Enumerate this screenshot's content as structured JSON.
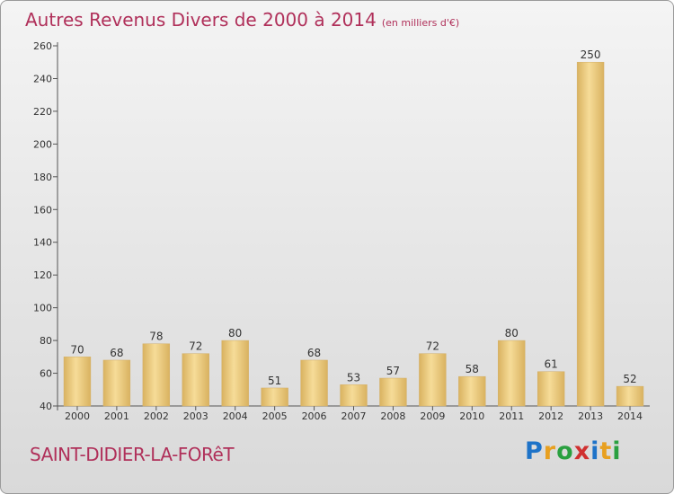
{
  "title": "Autres Revenus Divers de 2000 à 2014",
  "subtitle": "(en milliers d'€)",
  "commune": "SAINT-DIDIER-LA-FORêT",
  "logo": {
    "letters": [
      "P",
      "r",
      "o",
      "x",
      "i",
      "t",
      "i"
    ],
    "colors": [
      "#1e73c8",
      "#e8a020",
      "#2aa040",
      "#d03030",
      "#1e73c8",
      "#e8a020",
      "#2aa040"
    ]
  },
  "colors": {
    "bar_light": "#f6dc98",
    "bar_dark": "#d9b260",
    "axis": "#555555",
    "title": "#b0305a"
  },
  "chart_data": {
    "type": "bar",
    "categories": [
      "2000",
      "2001",
      "2002",
      "2003",
      "2004",
      "2005",
      "2006",
      "2007",
      "2008",
      "2009",
      "2010",
      "2011",
      "2012",
      "2013",
      "2014"
    ],
    "values": [
      70,
      68,
      78,
      72,
      80,
      51,
      68,
      53,
      57,
      72,
      58,
      80,
      61,
      250,
      52
    ],
    "ylim": [
      40,
      260
    ],
    "yticks": [
      40,
      60,
      80,
      100,
      120,
      140,
      160,
      180,
      200,
      220,
      240,
      260
    ],
    "grid": false,
    "legend": "none"
  }
}
